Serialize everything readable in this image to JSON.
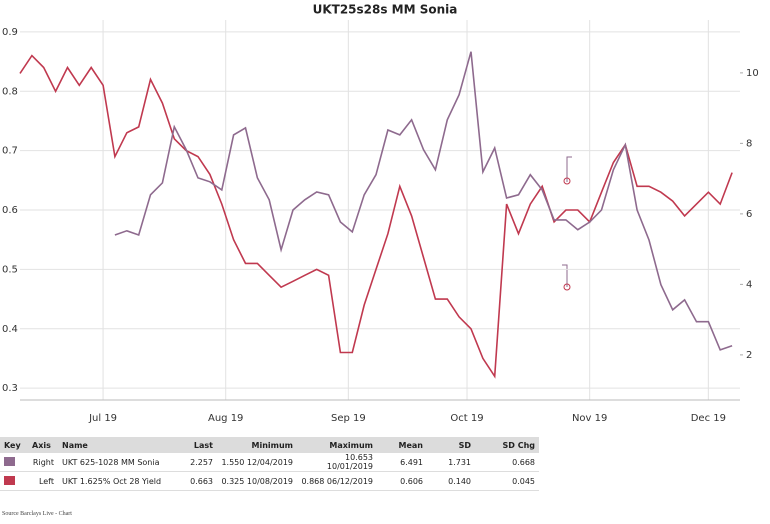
{
  "chart_data": {
    "type": "line",
    "title": "UKT25s28s MM Sonia",
    "x": [
      "2019-06-10",
      "2019-06-13",
      "2019-06-16",
      "2019-06-19",
      "2019-06-22",
      "2019-06-25",
      "2019-06-28",
      "2019-07-01",
      "2019-07-04",
      "2019-07-07",
      "2019-07-10",
      "2019-07-13",
      "2019-07-16",
      "2019-07-19",
      "2019-07-22",
      "2019-07-25",
      "2019-07-28",
      "2019-07-31",
      "2019-08-03",
      "2019-08-06",
      "2019-08-09",
      "2019-08-12",
      "2019-08-15",
      "2019-08-18",
      "2019-08-21",
      "2019-08-24",
      "2019-08-27",
      "2019-08-30",
      "2019-09-02",
      "2019-09-05",
      "2019-09-08",
      "2019-09-11",
      "2019-09-14",
      "2019-09-17",
      "2019-09-20",
      "2019-09-23",
      "2019-09-26",
      "2019-09-29",
      "2019-10-02",
      "2019-10-05",
      "2019-10-08",
      "2019-10-11",
      "2019-10-14",
      "2019-10-17",
      "2019-10-20",
      "2019-10-23",
      "2019-10-26",
      "2019-10-29",
      "2019-11-01",
      "2019-11-04",
      "2019-11-07",
      "2019-11-10",
      "2019-11-13",
      "2019-11-16",
      "2019-11-19",
      "2019-11-22",
      "2019-11-25",
      "2019-11-28",
      "2019-12-01",
      "2019-12-04",
      "2019-12-07"
    ],
    "xlim": [
      "2019-06-10",
      "2019-12-09"
    ],
    "xticks": [
      {
        "value": "2019-07-01",
        "label": "Jul 19"
      },
      {
        "value": "2019-08-01",
        "label": "Aug 19"
      },
      {
        "value": "2019-09-01",
        "label": "Sep 19"
      },
      {
        "value": "2019-10-01",
        "label": "Oct 19"
      },
      {
        "value": "2019-11-01",
        "label": "Nov 19"
      },
      {
        "value": "2019-12-01",
        "label": "Dec 19"
      }
    ],
    "ylim": [
      0.28,
      0.92
    ],
    "yticks": [
      0.3,
      0.4,
      0.5,
      0.6,
      0.7,
      0.8,
      0.9
    ],
    "y2lim": [
      0.72,
      11.5
    ],
    "y2ticks": [
      2,
      4,
      6,
      8,
      10
    ],
    "grid": true,
    "series": [
      {
        "name": "UKT 1.625% Oct 28 Yield",
        "color": "#c0394f",
        "axis": "y",
        "values": [
          0.83,
          0.86,
          0.84,
          0.8,
          0.84,
          0.81,
          0.84,
          0.81,
          0.69,
          0.73,
          0.74,
          0.82,
          0.78,
          0.72,
          0.7,
          0.69,
          0.66,
          0.61,
          0.55,
          0.51,
          0.51,
          0.49,
          0.47,
          0.48,
          0.49,
          0.5,
          0.49,
          0.36,
          0.36,
          0.44,
          0.5,
          0.56,
          0.64,
          0.59,
          0.52,
          0.45,
          0.45,
          0.42,
          0.4,
          0.35,
          0.32,
          0.61,
          0.56,
          0.61,
          0.64,
          0.58,
          0.6,
          0.6,
          0.58,
          0.63,
          0.68,
          0.71,
          0.64,
          0.64,
          0.63,
          0.615,
          0.59,
          0.61,
          0.63,
          0.61,
          0.663
        ]
      },
      {
        "name": "UKT 625-1028 MM Sonia",
        "color": "#8e6a8e",
        "axis": "y2",
        "values": [
          null,
          null,
          null,
          null,
          null,
          null,
          null,
          null,
          5.4,
          5.52,
          5.4,
          6.54,
          6.88,
          8.47,
          7.82,
          7.02,
          6.91,
          6.68,
          8.24,
          8.44,
          7.02,
          6.4,
          4.98,
          6.11,
          6.4,
          6.62,
          6.54,
          5.77,
          5.49,
          6.54,
          7.11,
          8.38,
          8.24,
          8.67,
          7.82,
          7.25,
          8.67,
          9.38,
          10.6,
          7.19,
          7.87,
          6.45,
          6.54,
          7.11,
          6.68,
          5.83,
          5.83,
          5.55,
          5.77,
          6.11,
          7.25,
          7.96,
          6.11,
          5.26,
          3.99,
          3.28,
          3.56,
          2.94,
          2.94,
          2.14,
          2.257
        ]
      }
    ]
  },
  "table": {
    "columns": [
      "Key",
      "Axis",
      "Name",
      "Last",
      "Minimum",
      "Maximum",
      "Mean",
      "SD",
      "SD Chg"
    ],
    "rows": [
      {
        "key_color": "#8e6a8e",
        "cells": [
          "Right",
          "UKT 625-1028 MM Sonia",
          "2.257",
          "1.550 12/04/2019",
          "10.653 10/01/2019",
          "6.491",
          "1.731",
          "0.668"
        ]
      },
      {
        "key_color": "#c0394f",
        "cells": [
          "Left",
          "UKT 1.625% Oct 28 Yield",
          "0.663",
          "0.325 10/08/2019",
          "0.868 06/12/2019",
          "0.606",
          "0.140",
          "0.045"
        ]
      }
    ]
  },
  "footer": "Source Barclays Live - Chart"
}
